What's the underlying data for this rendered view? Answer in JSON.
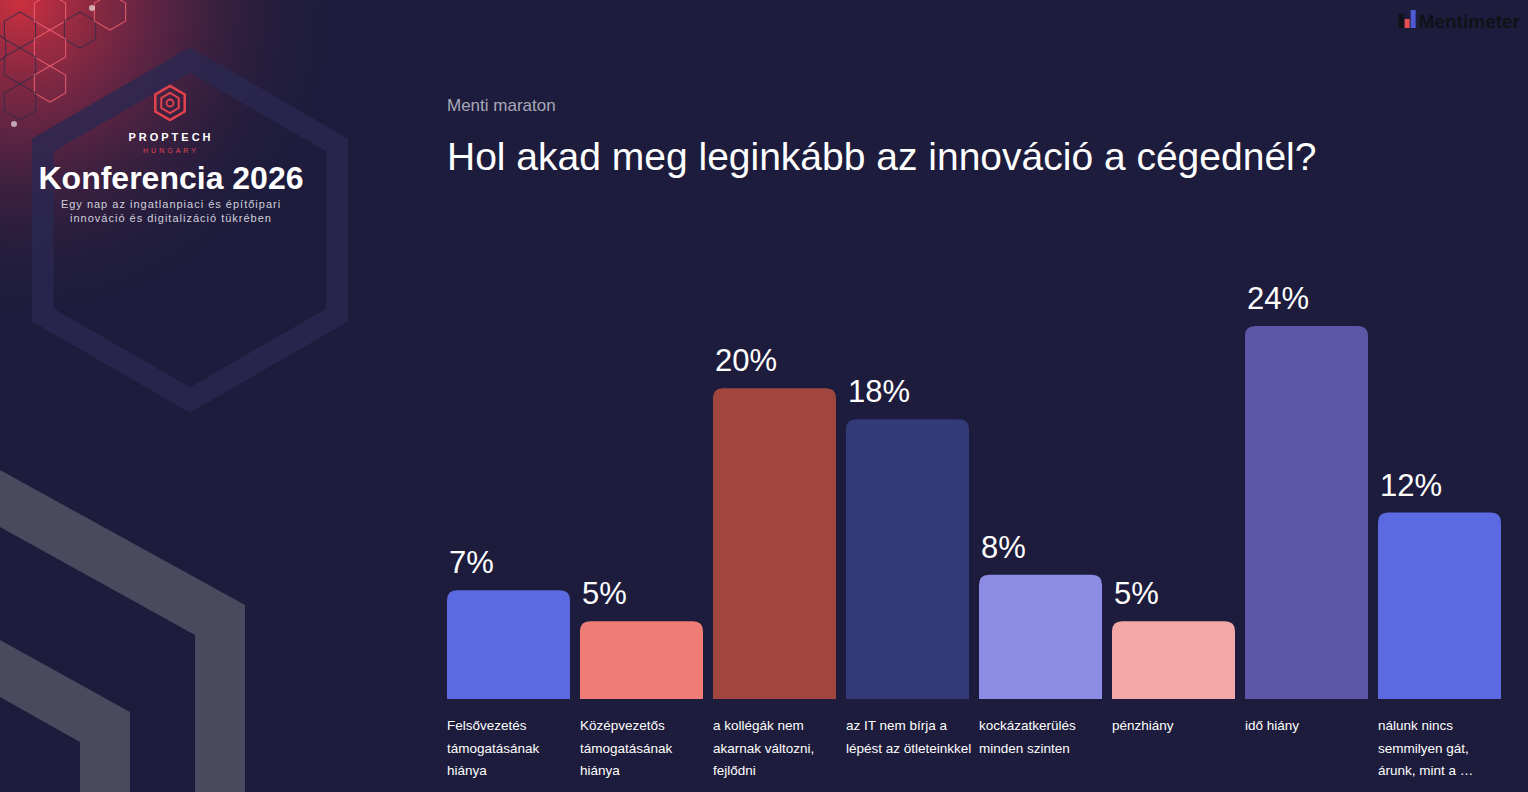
{
  "branding": {
    "logo_top": "PROPTECH",
    "logo_bottom": "HUNGARY",
    "event": "Konferencia 2026",
    "tagline": [
      "Egy nap az ingatlanpiaci és építőipari",
      "innováció és digitalizáció tükrében"
    ],
    "tool": "Mentimeter"
  },
  "chart_data": {
    "type": "bar",
    "subtitle": "Menti maraton",
    "title": "Hol akad meg leginkább az innováció a cégednél?",
    "categories": [
      "Felsővezetés támogatásának hiánya",
      "Középvezetős támogatásának hiánya",
      "a kollégák nem akarnak változni, fejlődni",
      "az IT nem bírja a lépést az ötleteinkkel",
      "kockázatkerülés minden szinten",
      "pénzhiány",
      "idő hiány",
      "nálunk nincs semmilyen gát, árunk, mint a …"
    ],
    "values": [
      7,
      5,
      20,
      18,
      8,
      5,
      24,
      12
    ],
    "value_labels": [
      "7%",
      "5%",
      "20%",
      "18%",
      "8%",
      "5%",
      "24%",
      "12%"
    ],
    "colors": [
      "#5b6ae0",
      "#ef7d76",
      "#a0463f",
      "#323a78",
      "#8b8ce4",
      "#f2a9a8",
      "#5d57a8",
      "#5b6ae0"
    ],
    "ylim": [
      0,
      24
    ],
    "grid": false,
    "data_labels": true,
    "tick_labels": "x"
  }
}
